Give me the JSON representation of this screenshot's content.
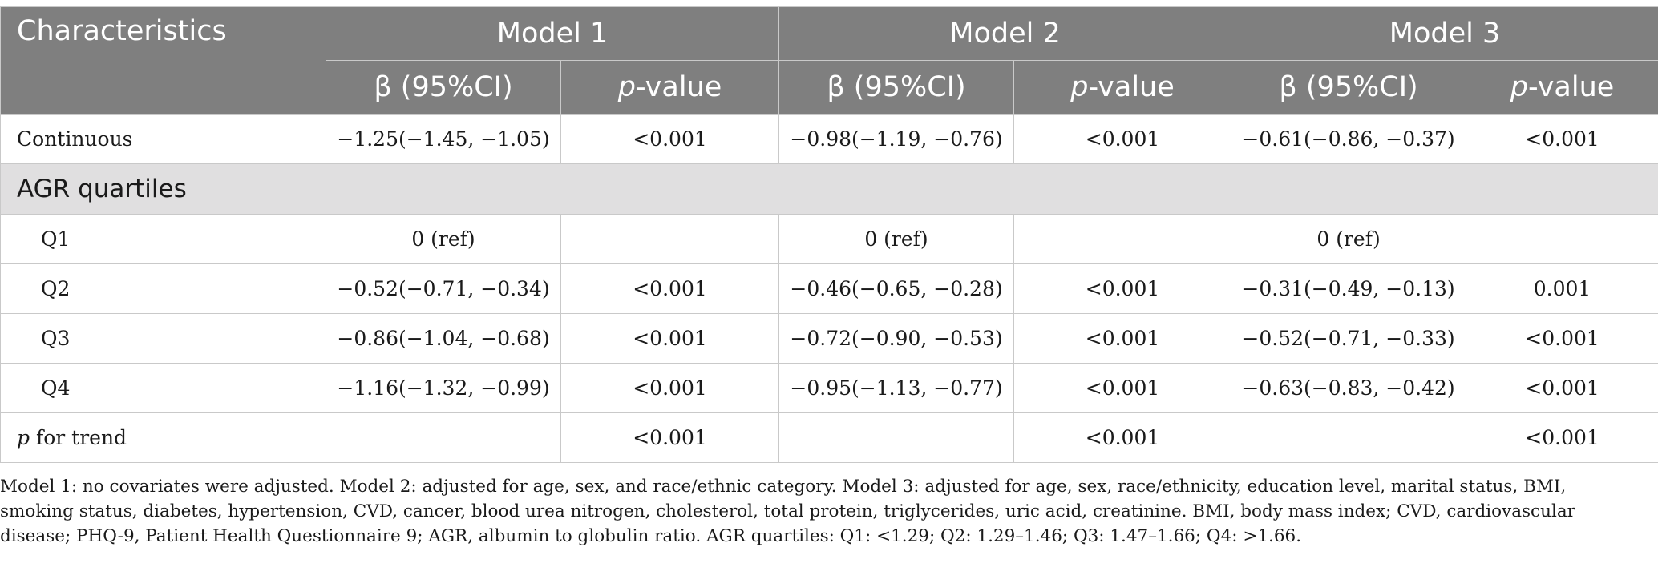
{
  "header": {
    "characteristics": "Characteristics",
    "models": [
      "Model 1",
      "Model 2",
      "Model 3"
    ],
    "beta_label": "β (95%CI)",
    "p_italic": "p",
    "p_suffix": "-value"
  },
  "rows": {
    "continuous": {
      "label": "Continuous",
      "m1_beta": "−1.25(−1.45, −1.05)",
      "m1_p": "<0.001",
      "m2_beta": "−0.98(−1.19, −0.76)",
      "m2_p": "<0.001",
      "m3_beta": "−0.61(−0.86, −0.37)",
      "m3_p": "<0.001"
    },
    "section_label": "AGR quartiles",
    "q1": {
      "label": "Q1",
      "m1_beta": "0 (ref)",
      "m1_p": "",
      "m2_beta": "0 (ref)",
      "m2_p": "",
      "m3_beta": "0 (ref)",
      "m3_p": ""
    },
    "q2": {
      "label": "Q2",
      "m1_beta": "−0.52(−0.71, −0.34)",
      "m1_p": "<0.001",
      "m2_beta": "−0.46(−0.65, −0.28)",
      "m2_p": "<0.001",
      "m3_beta": "−0.31(−0.49, −0.13)",
      "m3_p": "0.001"
    },
    "q3": {
      "label": "Q3",
      "m1_beta": "−0.86(−1.04, −0.68)",
      "m1_p": "<0.001",
      "m2_beta": "−0.72(−0.90, −0.53)",
      "m2_p": "<0.001",
      "m3_beta": "−0.52(−0.71, −0.33)",
      "m3_p": "<0.001"
    },
    "q4": {
      "label": "Q4",
      "m1_beta": "−1.16(−1.32, −0.99)",
      "m1_p": "<0.001",
      "m2_beta": "−0.95(−1.13, −0.77)",
      "m2_p": "<0.001",
      "m3_beta": "−0.63(−0.83, −0.42)",
      "m3_p": "<0.001"
    },
    "trend": {
      "label_italic": "p",
      "label_rest": " for trend",
      "m1_beta": "",
      "m1_p": "<0.001",
      "m2_beta": "",
      "m2_p": "<0.001",
      "m3_beta": "",
      "m3_p": "<0.001"
    }
  },
  "footnote": "Model 1: no covariates were adjusted. Model 2: adjusted for age, sex, and race/ethnic category. Model 3: adjusted for age, sex, race/ethnicity, education level, marital status, BMI, smoking status, diabetes, hypertension, CVD, cancer, blood urea nitrogen, cholesterol, total protein, triglycerides, uric acid, creatinine. BMI, body mass index; CVD, cardiovascular disease; PHQ-9, Patient Health Questionnaire 9; AGR, albumin to globulin ratio. AGR quartiles: Q1: <1.29; Q2: 1.29–1.46; Q3: 1.47–1.66; Q4: >1.66."
}
